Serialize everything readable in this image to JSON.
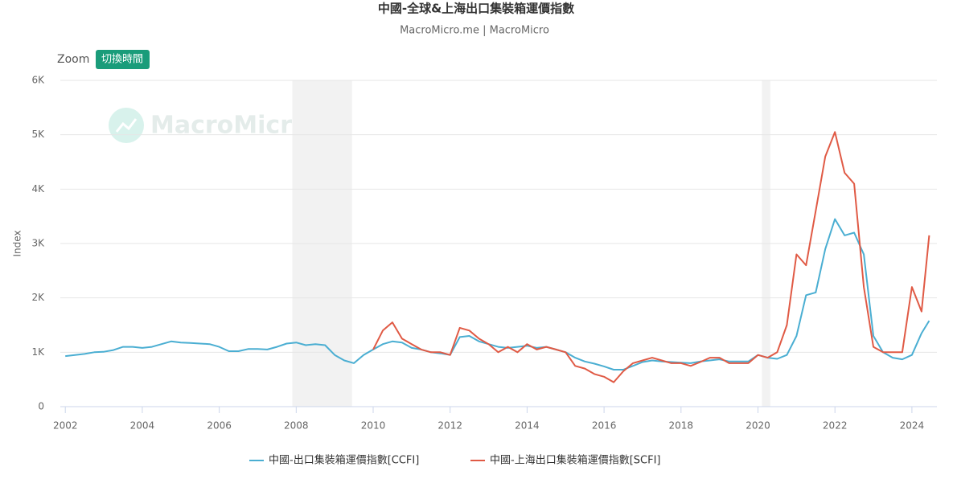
{
  "chart_data": {
    "type": "line",
    "title": "中國-全球&上海出口集裝箱運價指數",
    "subtitle": "MacroMicro.me | MacroMicro",
    "zoom_label": "Zoom",
    "zoom_button": "切換時間",
    "watermark": "MacroMicro",
    "y_label": "Index",
    "x": [
      2002,
      2002.25,
      2002.5,
      2002.75,
      2003,
      2003.25,
      2003.5,
      2003.75,
      2004,
      2004.25,
      2004.5,
      2004.75,
      2005,
      2005.25,
      2005.5,
      2005.75,
      2006,
      2006.25,
      2006.5,
      2006.75,
      2007,
      2007.25,
      2007.5,
      2007.75,
      2008,
      2008.25,
      2008.5,
      2008.75,
      2009,
      2009.25,
      2009.5,
      2009.75,
      2010,
      2010.25,
      2010.5,
      2010.75,
      2011,
      2011.25,
      2011.5,
      2011.75,
      2012,
      2012.25,
      2012.5,
      2012.75,
      2013,
      2013.25,
      2013.5,
      2013.75,
      2014,
      2014.25,
      2014.5,
      2014.75,
      2015,
      2015.25,
      2015.5,
      2015.75,
      2016,
      2016.25,
      2016.5,
      2016.75,
      2017,
      2017.25,
      2017.5,
      2017.75,
      2018,
      2018.25,
      2018.5,
      2018.75,
      2019,
      2019.25,
      2019.5,
      2019.75,
      2020,
      2020.25,
      2020.5,
      2020.75,
      2021,
      2021.25,
      2021.5,
      2021.75,
      2022,
      2022.25,
      2022.5,
      2022.75,
      2023,
      2023.25,
      2023.5,
      2023.75,
      2024,
      2024.25,
      2024.45
    ],
    "series": [
      {
        "name": "中國-出口集裝箱運價指數[CCFI]",
        "color": "#4aaed2",
        "values": [
          930,
          950,
          970,
          1000,
          1010,
          1040,
          1100,
          1100,
          1080,
          1100,
          1150,
          1200,
          1180,
          1170,
          1160,
          1150,
          1100,
          1020,
          1020,
          1060,
          1060,
          1050,
          1100,
          1160,
          1180,
          1130,
          1150,
          1130,
          950,
          850,
          800,
          950,
          1050,
          1150,
          1200,
          1180,
          1080,
          1050,
          1000,
          980,
          950,
          1280,
          1300,
          1200,
          1150,
          1100,
          1080,
          1100,
          1120,
          1080,
          1100,
          1050,
          1000,
          900,
          830,
          790,
          740,
          680,
          680,
          750,
          820,
          850,
          830,
          820,
          810,
          800,
          830,
          850,
          870,
          830,
          830,
          830,
          950,
          900,
          880,
          950,
          1300,
          2050,
          2100,
          2900,
          3450,
          3150,
          3200,
          2800,
          1300,
          1000,
          900,
          870,
          950,
          1350,
          1580
        ]
      },
      {
        "name": "中國-上海出口集裝箱運價指數[SCFI]",
        "color": "#e05a45",
        "values": [
          null,
          null,
          null,
          null,
          null,
          null,
          null,
          null,
          null,
          null,
          null,
          null,
          null,
          null,
          null,
          null,
          null,
          null,
          null,
          null,
          null,
          null,
          null,
          null,
          null,
          null,
          null,
          null,
          null,
          null,
          null,
          null,
          1050,
          1400,
          1550,
          1250,
          1150,
          1050,
          1000,
          1000,
          950,
          1450,
          1400,
          1250,
          1150,
          1000,
          1100,
          1000,
          1150,
          1050,
          1100,
          1050,
          1000,
          750,
          700,
          600,
          550,
          450,
          650,
          800,
          850,
          900,
          850,
          800,
          800,
          750,
          820,
          900,
          900,
          800,
          800,
          800,
          950,
          900,
          1000,
          1500,
          2800,
          2600,
          3600,
          4600,
          5050,
          4300,
          4100,
          2200,
          1100,
          1000,
          1000,
          1000,
          2200,
          1750,
          3150
        ]
      }
    ],
    "xlim": [
      2001.87,
      2024.65
    ],
    "xticks": [
      2002,
      2004,
      2006,
      2008,
      2010,
      2012,
      2014,
      2016,
      2018,
      2020,
      2022,
      2024
    ],
    "ylim": [
      0,
      6000
    ],
    "yticks": [
      0,
      {
        "value": 1000,
        "label": "1K"
      },
      {
        "value": 2000,
        "label": "2K"
      },
      {
        "value": 3000,
        "label": "3K"
      },
      {
        "value": 4000,
        "label": "4K"
      },
      {
        "value": 5000,
        "label": "5K"
      },
      {
        "value": 6000,
        "label": "6K"
      }
    ],
    "grid": true,
    "shaded_periods": [
      [
        2007.9,
        2009.45
      ],
      [
        2020.1,
        2020.32
      ]
    ],
    "legend": "bottom"
  }
}
